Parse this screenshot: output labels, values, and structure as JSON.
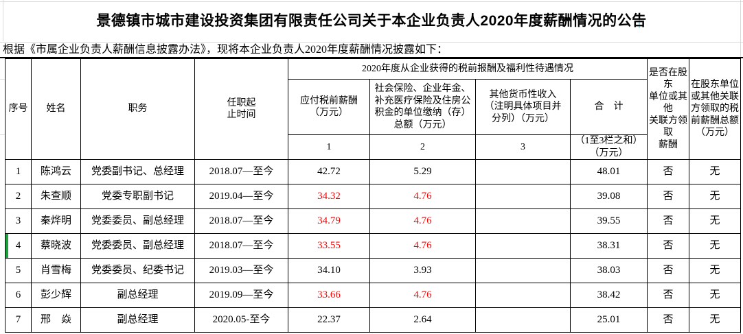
{
  "page": {
    "title": "景德镇市城市建设投资集团有限责任公司关于本企业负责人2020年度薪酬情况的公告",
    "subtitle": "根据《市属企业负责人薪酬信息披露办法》，现将本企业负责人2020年度薪酬情况披露如下："
  },
  "colors": {
    "highlight_red": "#FF0000",
    "row_selection_green": "#1f9d3f",
    "gridline_gray": "#d9d9d9",
    "table_border": "#000000"
  },
  "table": {
    "headers": {
      "no": "序号",
      "name": "姓名",
      "title": "职务",
      "term": "任职起\n止时间",
      "compensation_group": "2020年度从企业获得的税前报酬及福利性待遇情况",
      "salary": "应付税前薪酬\n（万元）",
      "insurance": "社会保险、企业年金、\n补充医疗保险及住房公\n积金的单位缴纳（存）\n总额（万元）",
      "other": "其他货币性收入\n（注明具体项目并\n分列）（万元）",
      "total": "合　计",
      "related": "是否在股东\n单位或其他\n关联方领取\n薪酬",
      "related_amount": "在股东单位\n或其他关联\n方领取的税\n前薪酬总额\n（万元）",
      "col1": "1",
      "col2": "2",
      "col3": "3",
      "total_note": "（1至3栏之和）\n（万元）"
    },
    "rows": [
      {
        "no": "1",
        "name": "陈鸿云",
        "title": "党委副书记、总经理",
        "term": "2018.07—至今",
        "salary": "42.72",
        "insurance": "5.29",
        "other": "",
        "total": "48.01",
        "related": "否",
        "related_amount": "无",
        "red": false,
        "selected": false
      },
      {
        "no": "2",
        "name": "朱查顺",
        "title": "党委专职副书记",
        "term": "2019.04—至今",
        "salary": "34.32",
        "insurance": "4.76",
        "other": "",
        "total": "39.08",
        "related": "否",
        "related_amount": "无",
        "red": true,
        "selected": false
      },
      {
        "no": "3",
        "name": "秦烨明",
        "title": "党委委员、副总经理",
        "term": "2018.07—至今",
        "salary": "34.79",
        "insurance": "4.76",
        "other": "",
        "total": "39.55",
        "related": "否",
        "related_amount": "无",
        "red": true,
        "selected": false
      },
      {
        "no": "4",
        "name": "蔡晓波",
        "title": "党委委员、副总经理",
        "term": "2018.07—至今",
        "salary": "33.55",
        "insurance": "4.76",
        "other": "",
        "total": "38.31",
        "related": "否",
        "related_amount": "无",
        "red": true,
        "selected": true
      },
      {
        "no": "5",
        "name": "肖雪梅",
        "title": "党委委员、纪委书记",
        "term": "2019.03—至今",
        "salary": "34.10",
        "insurance": "3.93",
        "other": "",
        "total": "38.03",
        "related": "否",
        "related_amount": "无",
        "red": false,
        "selected": false
      },
      {
        "no": "6",
        "name": "彭少辉",
        "title": "副总经理",
        "term": "2019.09—至今",
        "salary": "33.66",
        "insurance": "4.76",
        "other": "",
        "total": "38.42",
        "related": "否",
        "related_amount": "无",
        "red": true,
        "selected": false
      },
      {
        "no": "7",
        "name": "邢　焱",
        "title": "副总经理",
        "term": "2020.05-至今",
        "salary": "22.37",
        "insurance": "2.64",
        "other": "",
        "total": "25.01",
        "related": "否",
        "related_amount": "无",
        "red": false,
        "selected": false
      }
    ]
  }
}
